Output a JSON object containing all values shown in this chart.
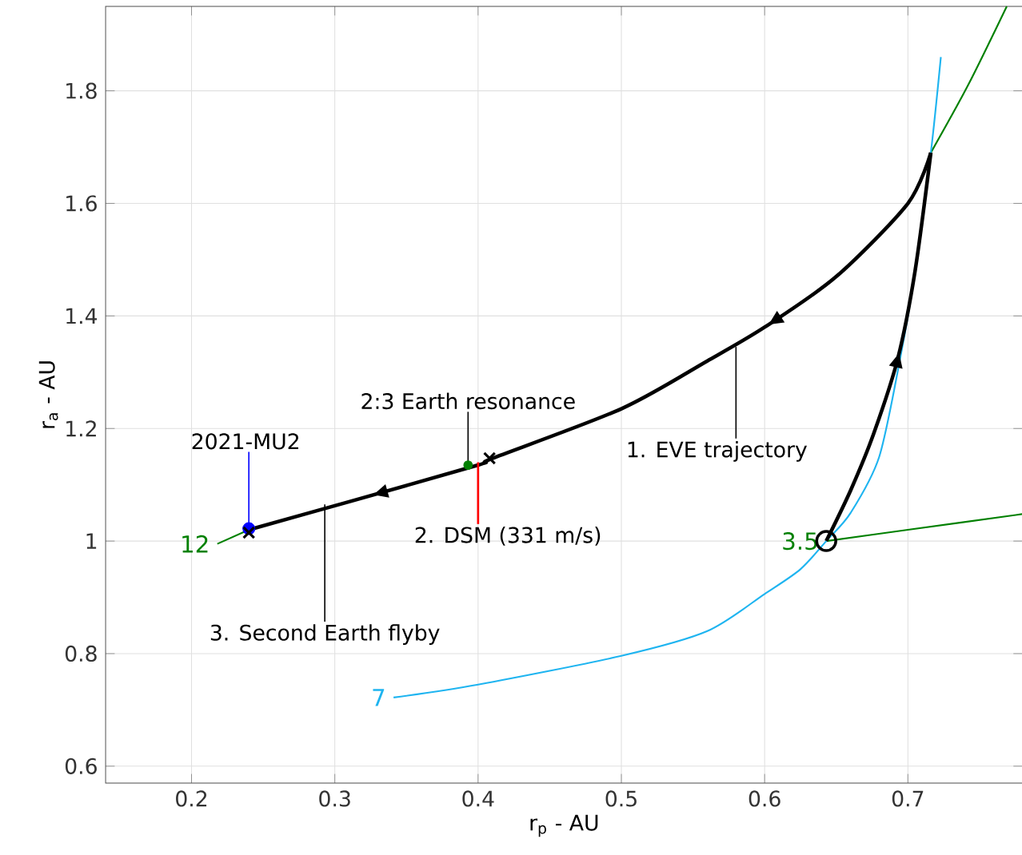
{
  "chart_data": {
    "type": "line",
    "xlabel": "r$_{p}$ - AU",
    "ylabel": "r$_{a}$ - AU",
    "xlim": [
      0.14,
      0.78
    ],
    "ylim": [
      0.57,
      1.95
    ],
    "xticks": [
      0.2,
      0.3,
      0.4,
      0.5,
      0.6,
      0.7
    ],
    "yticks": [
      0.6,
      0.8,
      1,
      1.2,
      1.4,
      1.6,
      1.8
    ],
    "grid": true,
    "series": [
      {
        "name": "12",
        "color": "#008000",
        "x": [
          0.218,
          0.24,
          0.31,
          0.4,
          0.5,
          0.56,
          0.6,
          0.65,
          0.7,
          0.716,
          0.742,
          0.769
        ],
        "values": [
          0.995,
          1.02,
          null,
          null,
          null,
          null,
          null,
          null,
          null,
          1.69,
          1.81,
          1.95
        ]
      },
      {
        "name": "3.5",
        "color": "#008000",
        "x": [
          0.643,
          0.7,
          0.78
        ],
        "values": [
          1.0,
          1.02,
          1.048
        ]
      },
      {
        "name": "7",
        "color": "#1eb4f0",
        "x": [
          0.341,
          0.4,
          0.5,
          0.56,
          0.6,
          0.625,
          0.643,
          0.66,
          0.68,
          0.695,
          0.705,
          0.716,
          0.723
        ],
        "values": [
          0.722,
          0.745,
          0.796,
          0.84,
          0.906,
          0.95,
          1.0,
          1.05,
          1.15,
          1.33,
          1.48,
          1.69,
          1.86
        ]
      },
      {
        "color": "#000000",
        "x": [
          0.643,
          0.66,
          0.676,
          0.693,
          0.705,
          0.716
        ],
        "values": [
          1.0,
          1.09,
          1.19,
          1.325,
          1.48,
          1.69
        ]
      },
      {
        "color": "#000000",
        "x": [
          0.716,
          0.7,
          0.65,
          0.6,
          0.56,
          0.5,
          0.41,
          0.4,
          0.31,
          0.24
        ],
        "values": [
          1.69,
          1.6,
          1.47,
          1.38,
          1.32,
          1.235,
          1.147,
          1.135,
          1.07,
          1.02
        ]
      },
      {
        "type": "scatter",
        "marker": "circle",
        "color": "#008000",
        "x": [
          0.393
        ],
        "values": [
          1.135
        ]
      },
      {
        "type": "scatter",
        "marker": "circle",
        "color": "#0000ff",
        "x": [
          0.24
        ],
        "values": [
          1.022
        ]
      },
      {
        "type": "scatter",
        "marker": "cross",
        "color": "#000000",
        "x": [
          0.24,
          0.408
        ],
        "values": [
          1.015,
          1.147
        ]
      },
      {
        "type": "scatter",
        "marker": "circle",
        "color": "#000000",
        "x": [
          0.643
        ],
        "values": [
          1.0
        ]
      }
    ],
    "annotations": [
      {
        "text": "2021-MU2",
        "x": 0.24,
        "y": 1.022
      },
      {
        "text": "2:3 Earth resonance",
        "x": 0.393,
        "y": 1.135
      },
      {
        "text": "2. DSM (331 m/s)",
        "x": 0.4,
        "y": 1.14
      },
      {
        "text": "1. EVE trajectory",
        "x": 0.58,
        "y": 1.345
      },
      {
        "text": "3. Second Earth flyby",
        "x": 0.293,
        "y": 1.065
      }
    ]
  }
}
